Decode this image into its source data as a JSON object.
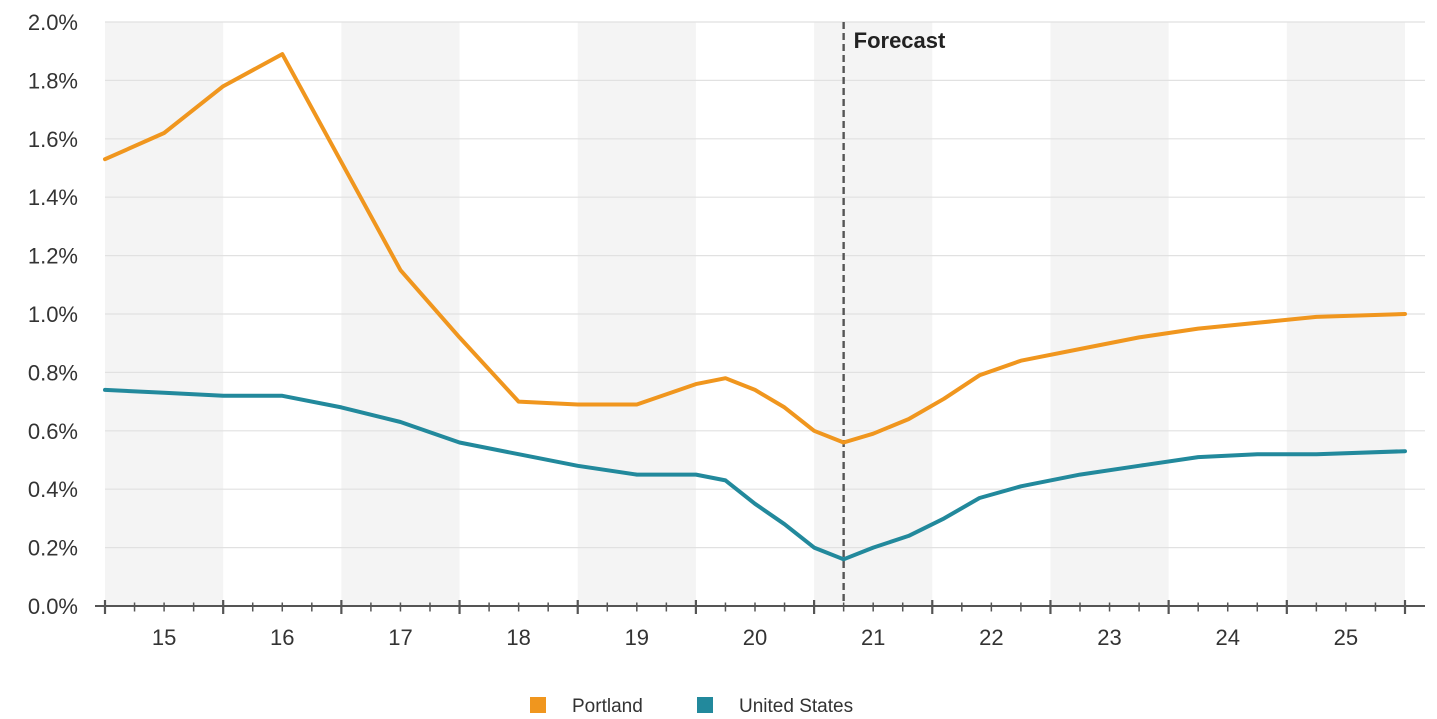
{
  "chart_data": {
    "type": "line",
    "x_axis": {
      "tick_labels": [
        "15",
        "16",
        "17",
        "18",
        "19",
        "20",
        "21",
        "22",
        "23",
        "24",
        "25"
      ],
      "range": [
        2014.5,
        2025.5
      ],
      "minor_ticks_per_year": 4
    },
    "y_axis": {
      "range": [
        0,
        2.0
      ],
      "tick_values": [
        0,
        0.2,
        0.4,
        0.6,
        0.8,
        1.0,
        1.2,
        1.4,
        1.6,
        1.8,
        2.0
      ],
      "tick_labels": [
        "0.0%",
        "0.2%",
        "0.4%",
        "0.6%",
        "0.8%",
        "1.0%",
        "1.2%",
        "1.4%",
        "1.6%",
        "1.8%",
        "2.0%"
      ]
    },
    "grid": true,
    "alternating_year_bands": true,
    "annotations": [
      {
        "label": "Forecast",
        "x": 2020.75
      }
    ],
    "legend": {
      "position": "bottom-center"
    },
    "series": [
      {
        "name": "Portland",
        "color": "#f0961e",
        "points": [
          [
            2014.5,
            1.53
          ],
          [
            2015.0,
            1.62
          ],
          [
            2015.5,
            1.78
          ],
          [
            2016.0,
            1.89
          ],
          [
            2016.5,
            1.52
          ],
          [
            2017.0,
            1.15
          ],
          [
            2017.5,
            0.92
          ],
          [
            2018.0,
            0.7
          ],
          [
            2018.5,
            0.69
          ],
          [
            2019.0,
            0.69
          ],
          [
            2019.5,
            0.76
          ],
          [
            2019.75,
            0.78
          ],
          [
            2020.0,
            0.74
          ],
          [
            2020.25,
            0.68
          ],
          [
            2020.5,
            0.6
          ],
          [
            2020.75,
            0.56
          ],
          [
            2021.0,
            0.59
          ],
          [
            2021.3,
            0.64
          ],
          [
            2021.6,
            0.71
          ],
          [
            2021.9,
            0.79
          ],
          [
            2022.25,
            0.84
          ],
          [
            2022.75,
            0.88
          ],
          [
            2023.25,
            0.92
          ],
          [
            2023.75,
            0.95
          ],
          [
            2024.25,
            0.97
          ],
          [
            2024.75,
            0.99
          ],
          [
            2025.5,
            1.0
          ]
        ]
      },
      {
        "name": "United States",
        "color": "#22899c",
        "points": [
          [
            2014.5,
            0.74
          ],
          [
            2015.0,
            0.73
          ],
          [
            2015.5,
            0.72
          ],
          [
            2016.0,
            0.72
          ],
          [
            2016.5,
            0.68
          ],
          [
            2017.0,
            0.63
          ],
          [
            2017.5,
            0.56
          ],
          [
            2018.0,
            0.52
          ],
          [
            2018.5,
            0.48
          ],
          [
            2019.0,
            0.45
          ],
          [
            2019.5,
            0.45
          ],
          [
            2019.75,
            0.43
          ],
          [
            2020.0,
            0.35
          ],
          [
            2020.25,
            0.28
          ],
          [
            2020.5,
            0.2
          ],
          [
            2020.75,
            0.16
          ],
          [
            2021.0,
            0.2
          ],
          [
            2021.3,
            0.24
          ],
          [
            2021.6,
            0.3
          ],
          [
            2021.9,
            0.37
          ],
          [
            2022.25,
            0.41
          ],
          [
            2022.75,
            0.45
          ],
          [
            2023.25,
            0.48
          ],
          [
            2023.75,
            0.51
          ],
          [
            2024.25,
            0.52
          ],
          [
            2024.75,
            0.52
          ],
          [
            2025.5,
            0.53
          ]
        ]
      }
    ]
  }
}
